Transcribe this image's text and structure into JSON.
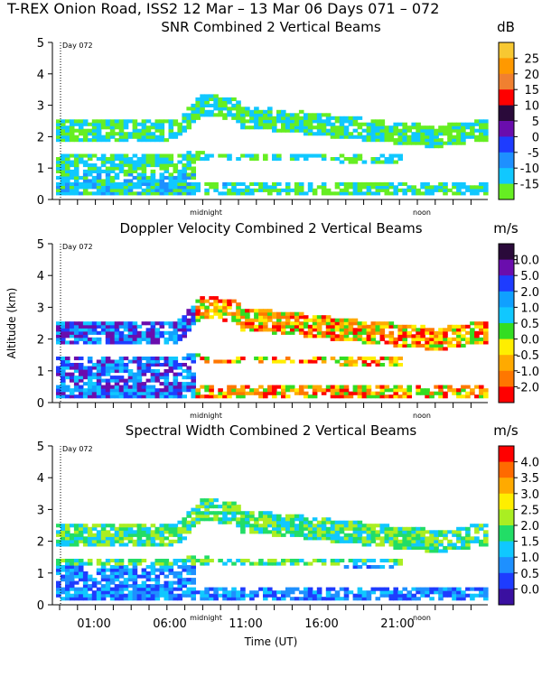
{
  "page_title": "T-REX Onion Road, ISS2  12 Mar – 13 Mar 06 Days 071 – 072",
  "chart_data": [
    {
      "type": "heatmap",
      "title": "SNR Combined 2 Vertical Beams",
      "unit": "dB",
      "ylabel": "",
      "ylim": [
        0,
        5
      ],
      "yticks": [
        "0",
        "1",
        "2",
        "3",
        "4",
        "5"
      ],
      "day_marker": "Day 072",
      "x_annotations": [
        "midnight",
        "noon"
      ],
      "colorbar": {
        "labels": [
          "25",
          "20",
          "15",
          "10",
          "5",
          "0",
          "-5",
          "-10",
          "-15"
        ],
        "colors": [
          "#f7c832",
          "#ff9900",
          "#f08030",
          "#ff0000",
          "#2a0a3a",
          "#6a0dad",
          "#1e3cff",
          "#1e90ff",
          "#10c8ff",
          "#66ee22"
        ]
      }
    },
    {
      "type": "heatmap",
      "title": "Doppler Velocity Combined 2 Vertical Beams",
      "unit": "m/s",
      "ylabel": "Altitude (km)",
      "ylim": [
        0,
        5
      ],
      "yticks": [
        "0",
        "1",
        "2",
        "3",
        "4",
        "5"
      ],
      "day_marker": "Day 072",
      "x_annotations": [
        "midnight",
        "noon"
      ],
      "colorbar": {
        "labels": [
          "10.0",
          "5.0",
          "2.0",
          "1.0",
          "0.5",
          "0.0",
          "-0.5",
          "-1.0",
          "-2.0"
        ],
        "colors": [
          "#2a0a3a",
          "#6a0dad",
          "#1e3cff",
          "#10a0ff",
          "#10c8ff",
          "#33dd22",
          "#ffee00",
          "#ffaa00",
          "#ff7700",
          "#ff0000"
        ]
      }
    },
    {
      "type": "heatmap",
      "title": "Spectral Width Combined 2 Vertical Beams",
      "unit": "m/s",
      "xlabel": "Time (UT)",
      "ylabel": "",
      "ylim": [
        0,
        5
      ],
      "yticks": [
        "0",
        "1",
        "2",
        "3",
        "4",
        "5"
      ],
      "xticks": [
        "01:00",
        "06:00",
        "11:00",
        "16:00",
        "21:00"
      ],
      "day_marker": "Day 072",
      "x_annotations": [
        "midnight",
        "noon"
      ],
      "colorbar": {
        "labels": [
          "4.0",
          "3.5",
          "3.0",
          "2.5",
          "2.0",
          "1.5",
          "1.0",
          "0.5",
          "0.0"
        ],
        "colors": [
          "#ff0000",
          "#ff6a00",
          "#ffaa00",
          "#ffee00",
          "#aaee22",
          "#22dd66",
          "#10c8ff",
          "#1e90ff",
          "#1e3cff",
          "#3a10a0"
        ]
      }
    }
  ]
}
